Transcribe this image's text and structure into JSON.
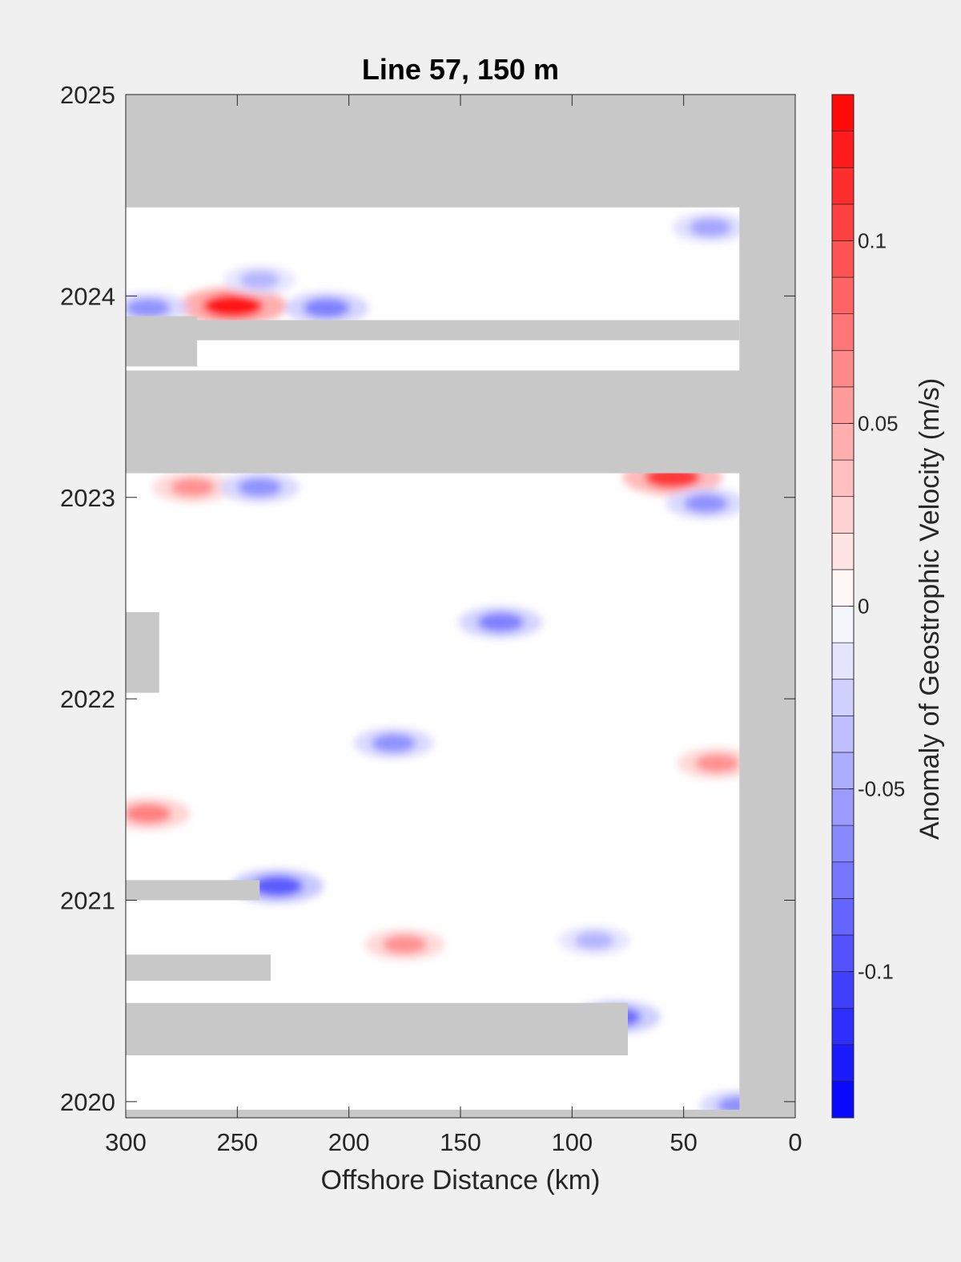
{
  "chart_data": {
    "type": "heatmap",
    "title": "Line 57, 150 m",
    "xlabel": "Offshore Distance (km)",
    "ylabel": "",
    "colorbar_label": "Anomaly of Geostrophic Velocity (m/s)",
    "xlim": [
      300,
      0
    ],
    "x_reversed": true,
    "ylim": [
      2019.92,
      2025
    ],
    "xticks": [
      "300",
      "250",
      "200",
      "150",
      "100",
      "50",
      "0"
    ],
    "yticks": [
      "2020",
      "2021",
      "2022",
      "2023",
      "2024",
      "2025"
    ],
    "colorbar_range": [
      -0.14,
      0.14
    ],
    "colorbar_ticks": [
      "0.1",
      "0.05",
      "0",
      "-0.05",
      "-0.1"
    ],
    "colormap": "blue-white-red",
    "missing_color": "#c8c8c8",
    "data_coverage_x": [
      300,
      25
    ],
    "missing_data_periods": [
      {
        "x": [
          300,
          0
        ],
        "y": [
          2024.44,
          2025
        ]
      },
      {
        "x": [
          300,
          0
        ],
        "y": [
          2023.12,
          2023.63
        ]
      },
      {
        "x": [
          300,
          25
        ],
        "y": [
          2023.78,
          2023.88
        ]
      },
      {
        "x": [
          300,
          268
        ],
        "y": [
          2023.65,
          2023.9
        ]
      },
      {
        "x": [
          300,
          285
        ],
        "y": [
          2022.03,
          2022.43
        ]
      },
      {
        "x": [
          300,
          240
        ],
        "y": [
          2021.0,
          2021.1
        ]
      },
      {
        "x": [
          300,
          235
        ],
        "y": [
          2020.6,
          2020.73
        ]
      },
      {
        "x": [
          300,
          75
        ],
        "y": [
          2020.23,
          2020.49
        ]
      },
      {
        "x": [
          300,
          0
        ],
        "y": [
          2019.92,
          2019.96
        ]
      }
    ],
    "features": [
      {
        "x": 252,
        "y": 2023.95,
        "value": 0.13
      },
      {
        "x": 290,
        "y": 2023.94,
        "value": -0.06
      },
      {
        "x": 210,
        "y": 2023.94,
        "value": -0.07
      },
      {
        "x": 240,
        "y": 2024.08,
        "value": -0.04
      },
      {
        "x": 38,
        "y": 2024.34,
        "value": -0.05
      },
      {
        "x": 55,
        "y": 2023.1,
        "value": 0.11
      },
      {
        "x": 40,
        "y": 2022.97,
        "value": -0.06
      },
      {
        "x": 270,
        "y": 2023.05,
        "value": 0.06
      },
      {
        "x": 240,
        "y": 2023.05,
        "value": -0.06
      },
      {
        "x": 132,
        "y": 2022.38,
        "value": -0.07
      },
      {
        "x": 180,
        "y": 2021.78,
        "value": -0.06
      },
      {
        "x": 290,
        "y": 2021.43,
        "value": 0.07
      },
      {
        "x": 35,
        "y": 2021.68,
        "value": 0.06
      },
      {
        "x": 232,
        "y": 2021.07,
        "value": -0.09
      },
      {
        "x": 175,
        "y": 2020.78,
        "value": 0.06
      },
      {
        "x": 80,
        "y": 2020.42,
        "value": -0.08
      },
      {
        "x": 90,
        "y": 2020.8,
        "value": -0.04
      },
      {
        "x": 25,
        "y": 2019.98,
        "value": -0.06
      }
    ],
    "grid": false
  }
}
